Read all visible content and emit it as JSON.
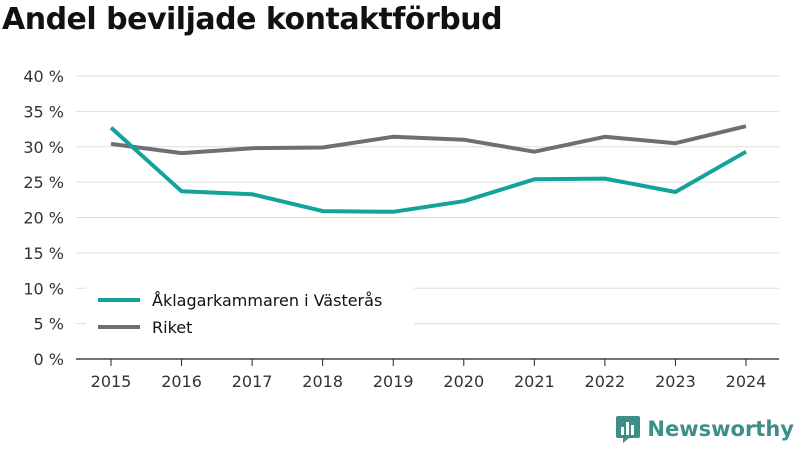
{
  "chart_data": {
    "type": "line",
    "title": "Andel beviljade kontaktförbud",
    "xlabel": "",
    "ylabel": "",
    "categories": [
      "2015",
      "2016",
      "2017",
      "2018",
      "2019",
      "2020",
      "2021",
      "2022",
      "2023",
      "2024"
    ],
    "ylim": [
      0,
      40
    ],
    "yticks": [
      0,
      5,
      10,
      15,
      20,
      25,
      30,
      35,
      40
    ],
    "ytick_labels": [
      "0 %",
      "5 %",
      "10 %",
      "15 %",
      "20 %",
      "25 %",
      "30 %",
      "35 %",
      "40 %"
    ],
    "grid": true,
    "legend_position": "bottom-left",
    "series": [
      {
        "name": "Åklagarkammaren i Västerås",
        "color": "#12a39a",
        "values": [
          32.7,
          23.7,
          23.3,
          20.9,
          20.8,
          22.3,
          25.4,
          25.5,
          23.6,
          29.3
        ]
      },
      {
        "name": "Riket",
        "color": "#6f6f73",
        "values": [
          30.4,
          29.1,
          29.8,
          29.9,
          31.4,
          31.0,
          29.3,
          31.4,
          30.5,
          32.9
        ]
      }
    ]
  },
  "brand": {
    "name": "Newsworthy",
    "icon": "bar-chart-logo-icon",
    "color": "#3d8f87"
  }
}
